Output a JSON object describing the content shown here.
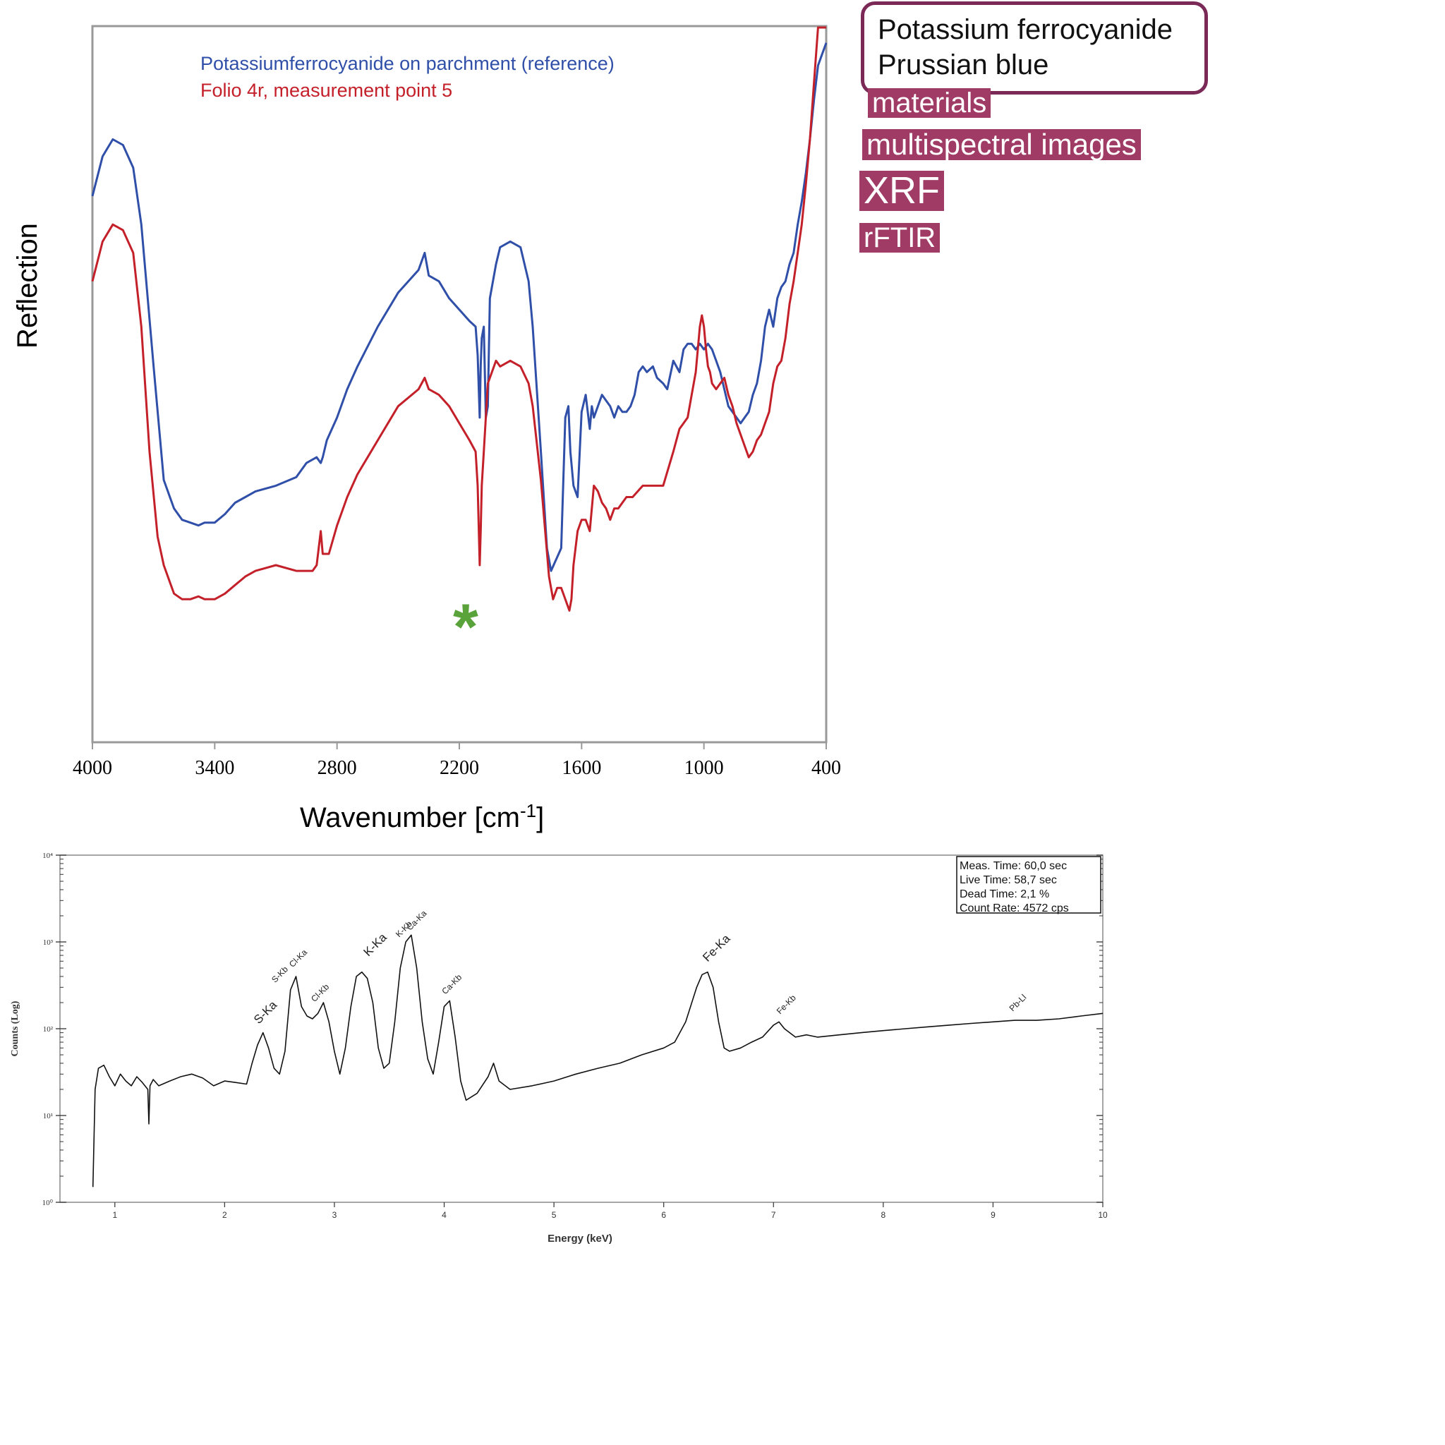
{
  "callout": {
    "lines": [
      "Potassium ferrocyanide",
      "Prussian blue"
    ]
  },
  "tags": [
    "materials",
    "multispectral images",
    "XRF",
    "rFTIR"
  ],
  "colors": {
    "reference": "#2f4fa8",
    "folio": "#c4202a",
    "marker": "#5aa33a",
    "tag_bg": "#a03b66",
    "callout_border": "#7b2a58"
  },
  "chart_data": [
    {
      "type": "line",
      "xlabel": "Wavenumber [cm-1]",
      "ylabel": "Reflection",
      "xlim": [
        4000,
        400
      ],
      "x_ticks": [
        4000,
        3400,
        2800,
        2200,
        1600,
        1000,
        400
      ],
      "x_tick_labels": [
        "4000",
        "3400",
        "2800",
        "2200",
        "1600",
        "1000",
        "400"
      ],
      "y_ticks_shown": false,
      "legend_position": "top-center",
      "annotations": [
        {
          "text": "*",
          "x": 2130,
          "y": 0.17,
          "color": "#5aa33a"
        }
      ],
      "series": [
        {
          "name": "Potassiumferrocyanide on parchment (reference)",
          "color": "#2f4fa8",
          "x": [
            4000,
            3950,
            3900,
            3850,
            3800,
            3760,
            3700,
            3650,
            3600,
            3560,
            3520,
            3480,
            3450,
            3400,
            3350,
            3300,
            3250,
            3200,
            3100,
            3000,
            2950,
            2900,
            2880,
            2870,
            2850,
            2800,
            2750,
            2700,
            2600,
            2500,
            2400,
            2370,
            2350,
            2300,
            2250,
            2200,
            2150,
            2120,
            2110,
            2100,
            2095,
            2090,
            2080,
            2070,
            2060,
            2050,
            2020,
            2000,
            1950,
            1900,
            1860,
            1840,
            1800,
            1770,
            1750,
            1700,
            1680,
            1665,
            1655,
            1640,
            1620,
            1600,
            1580,
            1560,
            1550,
            1540,
            1520,
            1500,
            1480,
            1460,
            1440,
            1420,
            1400,
            1380,
            1360,
            1340,
            1320,
            1300,
            1280,
            1250,
            1230,
            1200,
            1180,
            1150,
            1120,
            1100,
            1080,
            1060,
            1040,
            1020,
            1000,
            980,
            960,
            940,
            920,
            900,
            880,
            860,
            840,
            820,
            800,
            780,
            760,
            740,
            720,
            700,
            680,
            660,
            640,
            620,
            600,
            580,
            560,
            540,
            520,
            500,
            480,
            460,
            440,
            420,
            400
          ],
          "y": [
            0.85,
            0.92,
            0.95,
            0.94,
            0.9,
            0.8,
            0.55,
            0.35,
            0.3,
            0.28,
            0.275,
            0.27,
            0.275,
            0.275,
            0.29,
            0.31,
            0.32,
            0.33,
            0.34,
            0.355,
            0.38,
            0.39,
            0.38,
            0.39,
            0.42,
            0.46,
            0.51,
            0.55,
            0.62,
            0.68,
            0.72,
            0.75,
            0.71,
            0.7,
            0.67,
            0.65,
            0.63,
            0.62,
            0.57,
            0.46,
            0.55,
            0.6,
            0.62,
            0.46,
            0.48,
            0.67,
            0.73,
            0.76,
            0.77,
            0.76,
            0.7,
            0.62,
            0.4,
            0.23,
            0.19,
            0.23,
            0.46,
            0.48,
            0.4,
            0.34,
            0.32,
            0.47,
            0.5,
            0.44,
            0.48,
            0.46,
            0.48,
            0.5,
            0.49,
            0.48,
            0.46,
            0.48,
            0.47,
            0.47,
            0.48,
            0.5,
            0.54,
            0.55,
            0.54,
            0.55,
            0.53,
            0.52,
            0.51,
            0.56,
            0.54,
            0.58,
            0.59,
            0.59,
            0.58,
            0.59,
            0.58,
            0.59,
            0.58,
            0.56,
            0.54,
            0.51,
            0.48,
            0.47,
            0.46,
            0.45,
            0.46,
            0.47,
            0.5,
            0.52,
            0.56,
            0.62,
            0.65,
            0.62,
            0.67,
            0.69,
            0.7,
            0.73,
            0.75,
            0.8,
            0.84,
            0.89,
            0.95,
            1.02,
            1.08,
            1.1,
            1.12
          ]
        },
        {
          "name": "Folio 4r, measurement point 5",
          "color": "#c4202a",
          "x": [
            4000,
            3950,
            3900,
            3850,
            3800,
            3760,
            3720,
            3680,
            3650,
            3620,
            3600,
            3560,
            3520,
            3480,
            3450,
            3400,
            3350,
            3300,
            3250,
            3200,
            3100,
            3000,
            2950,
            2920,
            2900,
            2880,
            2870,
            2860,
            2840,
            2800,
            2750,
            2700,
            2600,
            2500,
            2400,
            2370,
            2350,
            2300,
            2250,
            2200,
            2150,
            2120,
            2110,
            2100,
            2095,
            2090,
            2080,
            2060,
            2040,
            2020,
            2000,
            1950,
            1900,
            1860,
            1840,
            1800,
            1760,
            1740,
            1720,
            1700,
            1680,
            1660,
            1650,
            1640,
            1620,
            1600,
            1580,
            1560,
            1540,
            1520,
            1500,
            1480,
            1460,
            1440,
            1420,
            1400,
            1380,
            1350,
            1300,
            1250,
            1200,
            1150,
            1120,
            1100,
            1080,
            1060,
            1040,
            1030,
            1020,
            1010,
            1000,
            990,
            980,
            970,
            960,
            940,
            920,
            900,
            880,
            860,
            840,
            820,
            800,
            780,
            760,
            740,
            720,
            700,
            680,
            660,
            640,
            620,
            600,
            580,
            560,
            540,
            520,
            500,
            480,
            460,
            440,
            420,
            400
          ],
          "y": [
            0.7,
            0.77,
            0.8,
            0.79,
            0.75,
            0.62,
            0.4,
            0.25,
            0.2,
            0.17,
            0.15,
            0.14,
            0.14,
            0.145,
            0.14,
            0.14,
            0.15,
            0.165,
            0.18,
            0.19,
            0.2,
            0.19,
            0.19,
            0.19,
            0.2,
            0.26,
            0.22,
            0.22,
            0.22,
            0.27,
            0.32,
            0.36,
            0.42,
            0.48,
            0.51,
            0.53,
            0.51,
            0.5,
            0.48,
            0.45,
            0.42,
            0.4,
            0.34,
            0.2,
            0.26,
            0.34,
            0.4,
            0.52,
            0.54,
            0.56,
            0.55,
            0.56,
            0.55,
            0.52,
            0.48,
            0.35,
            0.18,
            0.14,
            0.16,
            0.16,
            0.14,
            0.12,
            0.14,
            0.2,
            0.26,
            0.28,
            0.28,
            0.26,
            0.34,
            0.33,
            0.31,
            0.3,
            0.28,
            0.3,
            0.3,
            0.31,
            0.32,
            0.32,
            0.34,
            0.34,
            0.34,
            0.4,
            0.44,
            0.45,
            0.46,
            0.5,
            0.54,
            0.58,
            0.62,
            0.64,
            0.62,
            0.58,
            0.55,
            0.54,
            0.52,
            0.51,
            0.52,
            0.53,
            0.5,
            0.48,
            0.45,
            0.43,
            0.41,
            0.39,
            0.4,
            0.42,
            0.43,
            0.45,
            0.47,
            0.52,
            0.55,
            0.56,
            0.6,
            0.66,
            0.7,
            0.75,
            0.8,
            0.87,
            0.95,
            1.05,
            1.15,
            1.22,
            1.25
          ]
        }
      ]
    },
    {
      "type": "line",
      "xlabel": "Energy (keV)",
      "ylabel": "Counts (Log)",
      "yscale": "log",
      "xlim": [
        0.5,
        10
      ],
      "ylim": [
        1,
        10000
      ],
      "x_ticks": [
        1,
        2,
        3,
        4,
        5,
        6,
        7,
        8,
        9,
        10
      ],
      "y_tick_labels": [
        "10⁰",
        "10¹",
        "10²",
        "10³",
        "10⁴"
      ],
      "info_box": [
        "Meas. Time: 60,0 sec",
        "Live Time: 58,7 sec",
        "Dead Time: 2,1 %",
        "Count Rate: 4572 cps"
      ],
      "peak_labels": [
        {
          "text": "S-Ka",
          "x": 2.31,
          "y": 100
        },
        {
          "text": "S-Kb",
          "x": 2.46,
          "y": 300
        },
        {
          "text": "Cl-Ka",
          "x": 2.62,
          "y": 450
        },
        {
          "text": "Cl-Kb",
          "x": 2.82,
          "y": 180
        },
        {
          "text": "K-Ka",
          "x": 3.31,
          "y": 600
        },
        {
          "text": "K-Kb",
          "x": 3.59,
          "y": 1000
        },
        {
          "text": "Ca-Ka",
          "x": 3.69,
          "y": 1200
        },
        {
          "text": "Ca-Kb",
          "x": 4.01,
          "y": 220
        },
        {
          "text": "Fe-Ka",
          "x": 6.4,
          "y": 520
        },
        {
          "text": "Fe-Kb",
          "x": 7.06,
          "y": 130
        },
        {
          "text": "Pb-Ll",
          "x": 9.18,
          "y": 140
        }
      ],
      "series": [
        {
          "color": "#111111",
          "x": [
            0.8,
            0.82,
            0.85,
            0.9,
            0.95,
            1.0,
            1.05,
            1.1,
            1.15,
            1.2,
            1.25,
            1.3,
            1.31,
            1.32,
            1.35,
            1.4,
            1.5,
            1.6,
            1.7,
            1.8,
            1.9,
            2.0,
            2.1,
            2.2,
            2.25,
            2.3,
            2.35,
            2.4,
            2.45,
            2.5,
            2.55,
            2.6,
            2.65,
            2.7,
            2.75,
            2.8,
            2.85,
            2.9,
            2.95,
            3.0,
            3.05,
            3.1,
            3.15,
            3.2,
            3.25,
            3.3,
            3.35,
            3.4,
            3.45,
            3.5,
            3.55,
            3.6,
            3.65,
            3.7,
            3.75,
            3.8,
            3.85,
            3.9,
            3.95,
            4.0,
            4.05,
            4.1,
            4.15,
            4.2,
            4.3,
            4.4,
            4.45,
            4.5,
            4.6,
            4.8,
            5.0,
            5.2,
            5.4,
            5.6,
            5.8,
            6.0,
            6.1,
            6.2,
            6.3,
            6.35,
            6.4,
            6.45,
            6.5,
            6.55,
            6.6,
            6.7,
            6.8,
            6.9,
            7.0,
            7.05,
            7.1,
            7.2,
            7.3,
            7.4,
            7.6,
            7.8,
            8.0,
            8.2,
            8.4,
            8.6,
            8.8,
            9.0,
            9.2,
            9.4,
            9.6,
            9.8,
            10.0
          ],
          "y": [
            1.5,
            20,
            35,
            38,
            28,
            22,
            30,
            25,
            22,
            28,
            24,
            20,
            8,
            22,
            26,
            22,
            25,
            28,
            30,
            27,
            22,
            25,
            24,
            23,
            40,
            65,
            90,
            60,
            35,
            30,
            55,
            280,
            400,
            180,
            140,
            130,
            150,
            200,
            120,
            55,
            30,
            60,
            180,
            400,
            450,
            380,
            200,
            60,
            35,
            40,
            120,
            500,
            1000,
            1200,
            500,
            120,
            45,
            30,
            70,
            180,
            210,
            80,
            25,
            15,
            18,
            28,
            40,
            25,
            20,
            22,
            25,
            30,
            35,
            40,
            50,
            60,
            70,
            120,
            300,
            420,
            450,
            300,
            120,
            60,
            55,
            60,
            70,
            80,
            110,
            120,
            100,
            80,
            85,
            80,
            85,
            90,
            95,
            100,
            105,
            110,
            115,
            120,
            125,
            125,
            130,
            140,
            150
          ]
        }
      ]
    }
  ]
}
